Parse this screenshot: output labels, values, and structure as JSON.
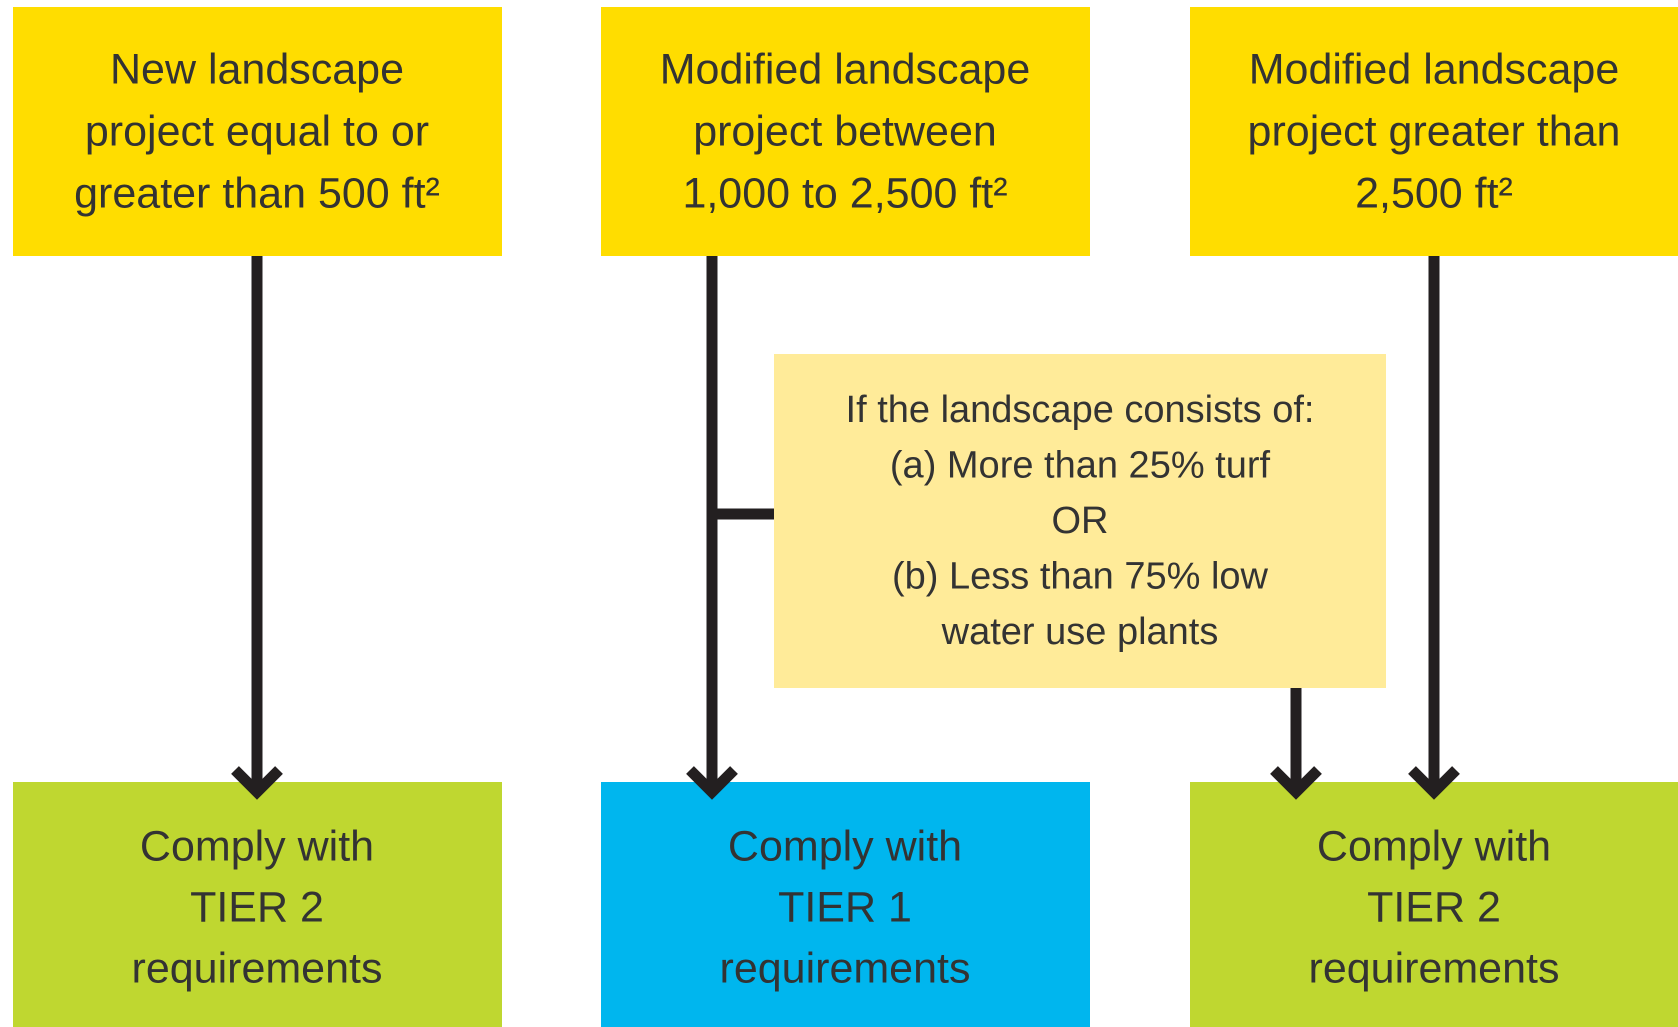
{
  "top_boxes": [
    {
      "lines": [
        "New landscape",
        "project equal to or",
        "greater than 500 ft²"
      ]
    },
    {
      "lines": [
        "Modified landscape",
        "project between",
        "1,000 to 2,500 ft²"
      ]
    },
    {
      "lines": [
        "Modified landscape",
        "project greater than",
        "2,500 ft²"
      ]
    }
  ],
  "condition": {
    "lines": [
      "If the landscape consists of:",
      "(a) More than 25% turf",
      "OR",
      "(b) Less than 75% low",
      "water use plants"
    ]
  },
  "bottom_boxes": [
    {
      "lines": [
        "Comply with",
        "TIER 2",
        "requirements"
      ]
    },
    {
      "lines": [
        "Comply with",
        "TIER 1",
        "requirements"
      ]
    },
    {
      "lines": [
        "Comply with",
        "TIER 2",
        "requirements"
      ]
    }
  ]
}
